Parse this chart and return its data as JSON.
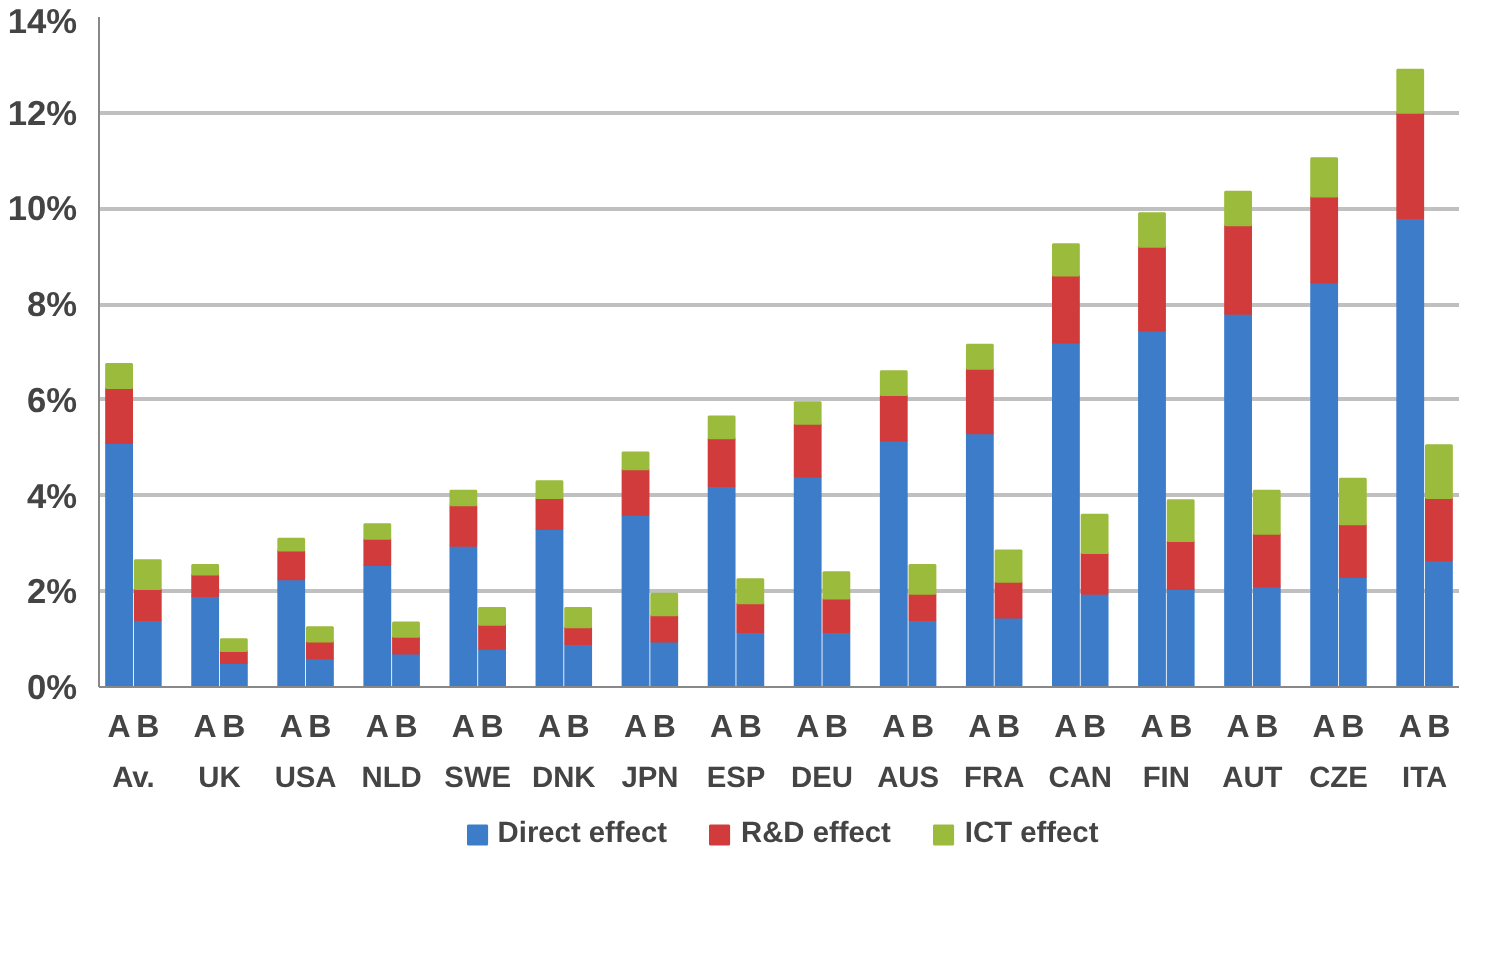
{
  "chart_data": {
    "type": "bar",
    "stacked": true,
    "categories": [
      "A",
      "B",
      "A",
      "B",
      "A",
      "B",
      "A",
      "B",
      "A",
      "B",
      "A",
      "B",
      "A",
      "B",
      "A",
      "B",
      "A",
      "B",
      "A",
      "B",
      "A",
      "B",
      "A",
      "B",
      "A",
      "B",
      "A",
      "B",
      "A",
      "B",
      "A",
      "B"
    ],
    "annotations": [
      "Av.",
      "UK",
      "USA",
      "NLD",
      "SWE",
      "DNK",
      "JPN",
      "ESP",
      "DEU",
      "AUS",
      "FRA",
      "CAN",
      "FIN",
      "AUT",
      "CZE",
      "ITA"
    ],
    "series": [
      {
        "name": "Direct effect",
        "color": "#3d7cc9",
        "values": [
          5.1,
          1.4,
          1.9,
          0.5,
          2.25,
          0.6,
          2.55,
          0.7,
          2.95,
          0.8,
          3.3,
          0.9,
          3.6,
          0.95,
          4.2,
          1.15,
          4.4,
          1.15,
          5.15,
          1.4,
          5.3,
          1.45,
          7.2,
          1.95,
          7.45,
          2.05,
          7.8,
          2.1,
          8.45,
          2.3,
          9.8,
          2.65
        ]
      },
      {
        "name": "R&D effect",
        "color": "#d13b3b",
        "values": [
          1.15,
          0.65,
          0.45,
          0.25,
          0.6,
          0.35,
          0.55,
          0.35,
          0.85,
          0.5,
          0.65,
          0.35,
          0.95,
          0.55,
          1.0,
          0.6,
          1.1,
          0.7,
          0.95,
          0.55,
          1.35,
          0.75,
          1.4,
          0.85,
          1.75,
          1.0,
          1.85,
          1.1,
          1.8,
          1.1,
          2.2,
          1.3
        ]
      },
      {
        "name": "ICT effect",
        "color": "#9bbb3c",
        "values": [
          0.5,
          0.6,
          0.2,
          0.25,
          0.25,
          0.3,
          0.3,
          0.3,
          0.3,
          0.35,
          0.35,
          0.4,
          0.35,
          0.45,
          0.45,
          0.5,
          0.45,
          0.55,
          0.5,
          0.6,
          0.5,
          0.65,
          0.65,
          0.8,
          0.7,
          0.85,
          0.7,
          0.9,
          0.8,
          0.95,
          0.9,
          1.1
        ]
      }
    ],
    "ylim": [
      0,
      14
    ],
    "yticks": [
      {
        "value": 0,
        "label": "0%"
      },
      {
        "value": 2,
        "label": "2%"
      },
      {
        "value": 4,
        "label": "4%"
      },
      {
        "value": 6,
        "label": "6%"
      },
      {
        "value": 8,
        "label": "8%"
      },
      {
        "value": 10,
        "label": "10%"
      },
      {
        "value": 12,
        "label": "12%"
      },
      {
        "value": 14,
        "label": "14%"
      }
    ],
    "grid": "y",
    "legend": "bottom"
  }
}
